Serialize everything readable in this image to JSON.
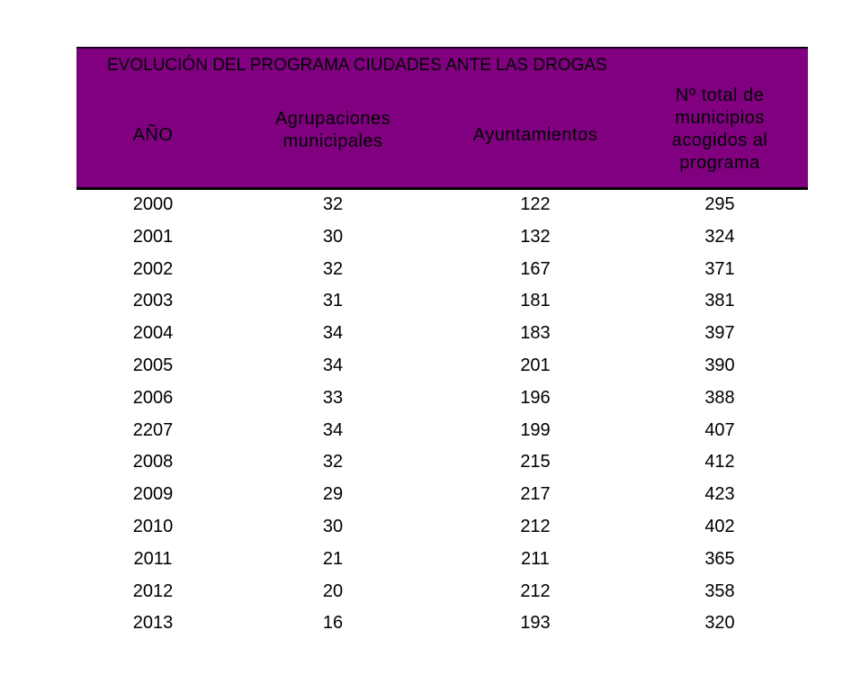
{
  "table": {
    "title": "EVOLUCIÓN DEL PROGRAMA CIUDADES ANTE LAS DROGAS",
    "columns": {
      "year": "AÑO",
      "agrupaciones_l1": "Agrupaciones",
      "agrupaciones_l2": "municipales",
      "ayuntamientos": "Ayuntamientos",
      "total_l1": "Nº total de",
      "total_l2": "municipios",
      "total_l3": "acogidos al",
      "total_l4": "programa"
    },
    "header_color": "#800080",
    "rows": [
      {
        "year": "2000",
        "agrupaciones": "32",
        "ayuntamientos": "122",
        "total": "295"
      },
      {
        "year": "2001",
        "agrupaciones": "30",
        "ayuntamientos": "132",
        "total": "324"
      },
      {
        "year": "2002",
        "agrupaciones": "32",
        "ayuntamientos": "167",
        "total": "371"
      },
      {
        "year": "2003",
        "agrupaciones": "31",
        "ayuntamientos": "181",
        "total": "381"
      },
      {
        "year": "2004",
        "agrupaciones": "34",
        "ayuntamientos": "183",
        "total": "397"
      },
      {
        "year": "2005",
        "agrupaciones": "34",
        "ayuntamientos": "201",
        "total": "390"
      },
      {
        "year": "2006",
        "agrupaciones": "33",
        "ayuntamientos": "196",
        "total": "388"
      },
      {
        "year": "2207",
        "agrupaciones": "34",
        "ayuntamientos": "199",
        "total": "407"
      },
      {
        "year": "2008",
        "agrupaciones": "32",
        "ayuntamientos": "215",
        "total": "412"
      },
      {
        "year": "2009",
        "agrupaciones": "29",
        "ayuntamientos": "217",
        "total": "423"
      },
      {
        "year": "2010",
        "agrupaciones": "30",
        "ayuntamientos": "212",
        "total": "402"
      },
      {
        "year": "2011",
        "agrupaciones": "21",
        "ayuntamientos": "211",
        "total": "365"
      },
      {
        "year": "2012",
        "agrupaciones": "20",
        "ayuntamientos": "212",
        "total": "358"
      },
      {
        "year": "2013",
        "agrupaciones": "16",
        "ayuntamientos": "193",
        "total": "320"
      }
    ]
  }
}
